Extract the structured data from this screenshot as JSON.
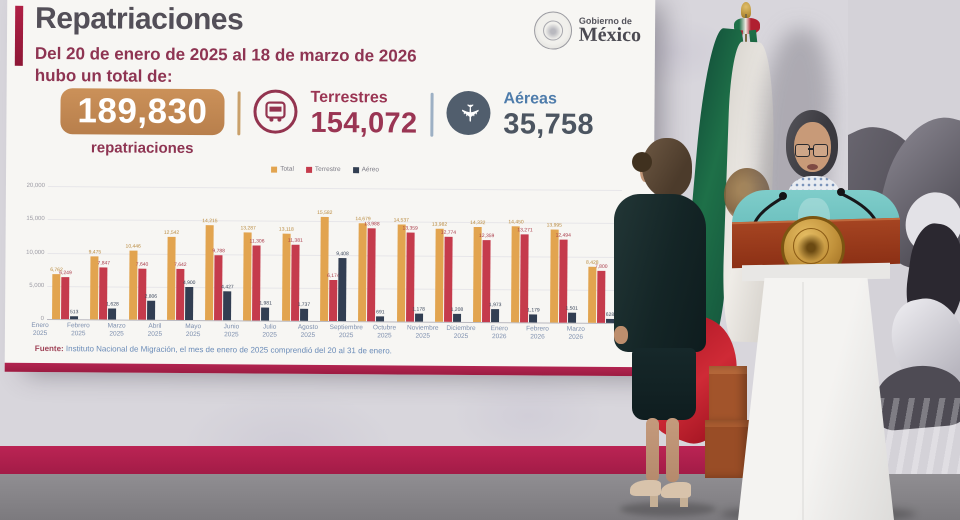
{
  "slide": {
    "title": "Repatriaciones",
    "subtitle_line1": "Del 20 de enero de 2025 al 18 de marzo de 2026",
    "subtitle_line2": "hubo un total de:",
    "logo": {
      "line1": "Gobierno de",
      "line2": "México"
    },
    "totals": {
      "total_value": "189,830",
      "total_label": "repatriaciones",
      "terrestres_label": "Terrestres",
      "terrestres_value": "154,072",
      "aereas_label": "Aéreas",
      "aereas_value": "35,758"
    },
    "footer": {
      "source_label": "Fuente:",
      "source_text": " Instituto Nacional de Migración, el mes de enero de 2025 comprendió del 20 al 31 de enero."
    }
  },
  "chart_data": {
    "type": "bar",
    "title": "",
    "xlabel": "",
    "ylabel": "",
    "ylim": [
      0,
      20000
    ],
    "yticks": [
      0,
      5000,
      10000,
      15000,
      20000
    ],
    "grid": true,
    "legend_position": "top",
    "categories": [
      "Enero 2025",
      "Febrero 2025",
      "Marzo 2025",
      "Abril 2025",
      "Mayo 2025",
      "Junio 2025",
      "Julio 2025",
      "Agosto 2025",
      "Septiembre 2025",
      "Octubre 2025",
      "Noviembre 2025",
      "Diciembre 2025",
      "Enero 2026",
      "Febrero 2026",
      "Marzo 2026"
    ],
    "series": [
      {
        "name": "Total",
        "color": "#e2a44f",
        "label_color": "#b98a3e",
        "values": [
          6762,
          9475,
          10446,
          12542,
          14215,
          13287,
          13118,
          15582,
          14679,
          14537,
          13982,
          14332,
          14450,
          13995,
          8428
        ]
      },
      {
        "name": "Terrestre",
        "color": "#c53b4c",
        "label_color": "#a93a48",
        "values": [
          6249,
          7847,
          7640,
          7642,
          9788,
          11306,
          11381,
          6174,
          13988,
          13359,
          12774,
          12359,
          13271,
          12494,
          7800
        ]
      },
      {
        "name": "Aéreo",
        "color": "#323e52",
        "label_color": "#39455a",
        "values": [
          513,
          1628,
          2806,
          4900,
          4427,
          1981,
          1737,
          9408,
          691,
          1178,
          1208,
          1973,
          1179,
          1501,
          628
        ]
      }
    ]
  },
  "colors": {
    "guinda_accent": "#9d2449",
    "slide_background": "#f7f6f3",
    "total_box": "#c08552",
    "aereas_blue": "#4e7cab",
    "crimson_band": "#b41f4e",
    "podium_band": "#9c3c1f",
    "seal_gold": "#c1913a",
    "jacket_teal": "#6cc6c4",
    "flag_green": "#1e7048",
    "flag_red": "#c41f33"
  }
}
